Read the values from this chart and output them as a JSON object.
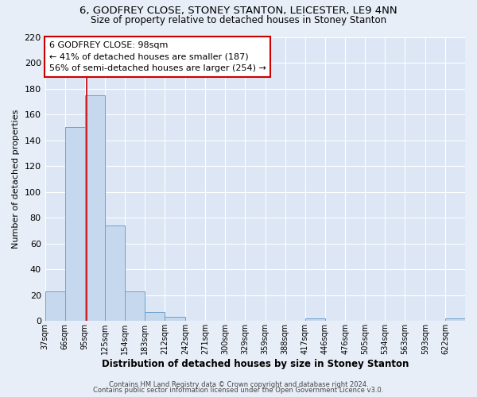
{
  "title": "6, GODFREY CLOSE, STONEY STANTON, LEICESTER, LE9 4NN",
  "subtitle": "Size of property relative to detached houses in Stoney Stanton",
  "xlabel": "Distribution of detached houses by size in Stoney Stanton",
  "ylabel": "Number of detached properties",
  "bins": [
    "37sqm",
    "66sqm",
    "95sqm",
    "125sqm",
    "154sqm",
    "183sqm",
    "212sqm",
    "242sqm",
    "271sqm",
    "300sqm",
    "329sqm",
    "359sqm",
    "388sqm",
    "417sqm",
    "446sqm",
    "476sqm",
    "505sqm",
    "534sqm",
    "563sqm",
    "593sqm",
    "622sqm"
  ],
  "bar_values": [
    23,
    150,
    175,
    74,
    23,
    7,
    3,
    0,
    0,
    0,
    0,
    0,
    0,
    2,
    0,
    0,
    0,
    0,
    0,
    0,
    2
  ],
  "bar_color": "#c5d8ee",
  "bar_edge_color": "#6ba3cb",
  "vline_x": 98,
  "vline_color": "#cc0000",
  "annotation_title": "6 GODFREY CLOSE: 98sqm",
  "annotation_line1": "← 41% of detached houses are smaller (187)",
  "annotation_line2": "56% of semi-detached houses are larger (254) →",
  "annotation_box_color": "#ffffff",
  "annotation_box_edge": "#cc0000",
  "ylim": [
    0,
    220
  ],
  "yticks": [
    0,
    20,
    40,
    60,
    80,
    100,
    120,
    140,
    160,
    180,
    200,
    220
  ],
  "footer1": "Contains HM Land Registry data © Crown copyright and database right 2024.",
  "footer2": "Contains public sector information licensed under the Open Government Licence v3.0.",
  "bg_color": "#e8eef7",
  "plot_bg_color": "#dce6f5",
  "title_fontsize": 9.5,
  "subtitle_fontsize": 8.5
}
